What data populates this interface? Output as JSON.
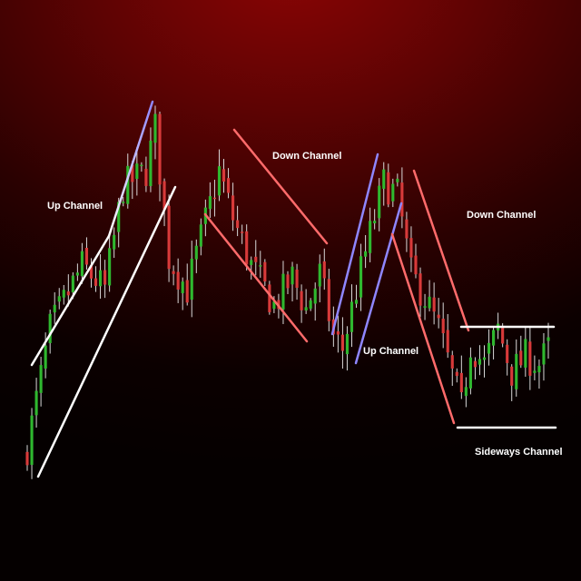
{
  "chart_data": {
    "type": "candlestick",
    "title": "",
    "xlabel": "",
    "ylabel": "",
    "axes_visible": false,
    "grid": false,
    "ylim": [
      0,
      100
    ],
    "colors": {
      "bullish": "#2fb82f",
      "bearish": "#d83a3a",
      "wick": "#d8d8d8",
      "up_channel": "#ffffff",
      "up_channel_tip": "#8f86ff",
      "down_channel": "#ff6b6b",
      "sideways_channel": "#ffffff",
      "label": "#ffffff"
    },
    "anchors": [
      {
        "i": 0,
        "v": 12
      },
      {
        "i": 5,
        "v": 42
      },
      {
        "i": 12,
        "v": 58
      },
      {
        "i": 17,
        "v": 52
      },
      {
        "i": 21,
        "v": 78
      },
      {
        "i": 26,
        "v": 82
      },
      {
        "i": 28,
        "v": 93
      },
      {
        "i": 31,
        "v": 60
      },
      {
        "i": 35,
        "v": 52
      },
      {
        "i": 38,
        "v": 65
      },
      {
        "i": 42,
        "v": 82
      },
      {
        "i": 45,
        "v": 70
      },
      {
        "i": 49,
        "v": 58
      },
      {
        "i": 54,
        "v": 48
      },
      {
        "i": 58,
        "v": 55
      },
      {
        "i": 61,
        "v": 47
      },
      {
        "i": 64,
        "v": 56
      },
      {
        "i": 67,
        "v": 40
      },
      {
        "i": 69,
        "v": 37
      },
      {
        "i": 72,
        "v": 52
      },
      {
        "i": 75,
        "v": 66
      },
      {
        "i": 78,
        "v": 79
      },
      {
        "i": 81,
        "v": 76
      },
      {
        "i": 84,
        "v": 56
      },
      {
        "i": 87,
        "v": 50
      },
      {
        "i": 90,
        "v": 42
      },
      {
        "i": 93,
        "v": 30
      },
      {
        "i": 95,
        "v": 22
      },
      {
        "i": 97,
        "v": 38
      },
      {
        "i": 100,
        "v": 33
      },
      {
        "i": 103,
        "v": 42
      },
      {
        "i": 106,
        "v": 31
      },
      {
        "i": 109,
        "v": 35
      },
      {
        "i": 112,
        "v": 33
      },
      {
        "i": 114,
        "v": 37
      }
    ],
    "channels": [
      {
        "label": "Up Channel",
        "kind": "up"
      },
      {
        "label": "Down Channel",
        "kind": "down"
      },
      {
        "label": "Up Channel",
        "kind": "up"
      },
      {
        "label": "Down Channel",
        "kind": "down"
      },
      {
        "label": "Sideways Channel",
        "kind": "sideways"
      }
    ]
  }
}
